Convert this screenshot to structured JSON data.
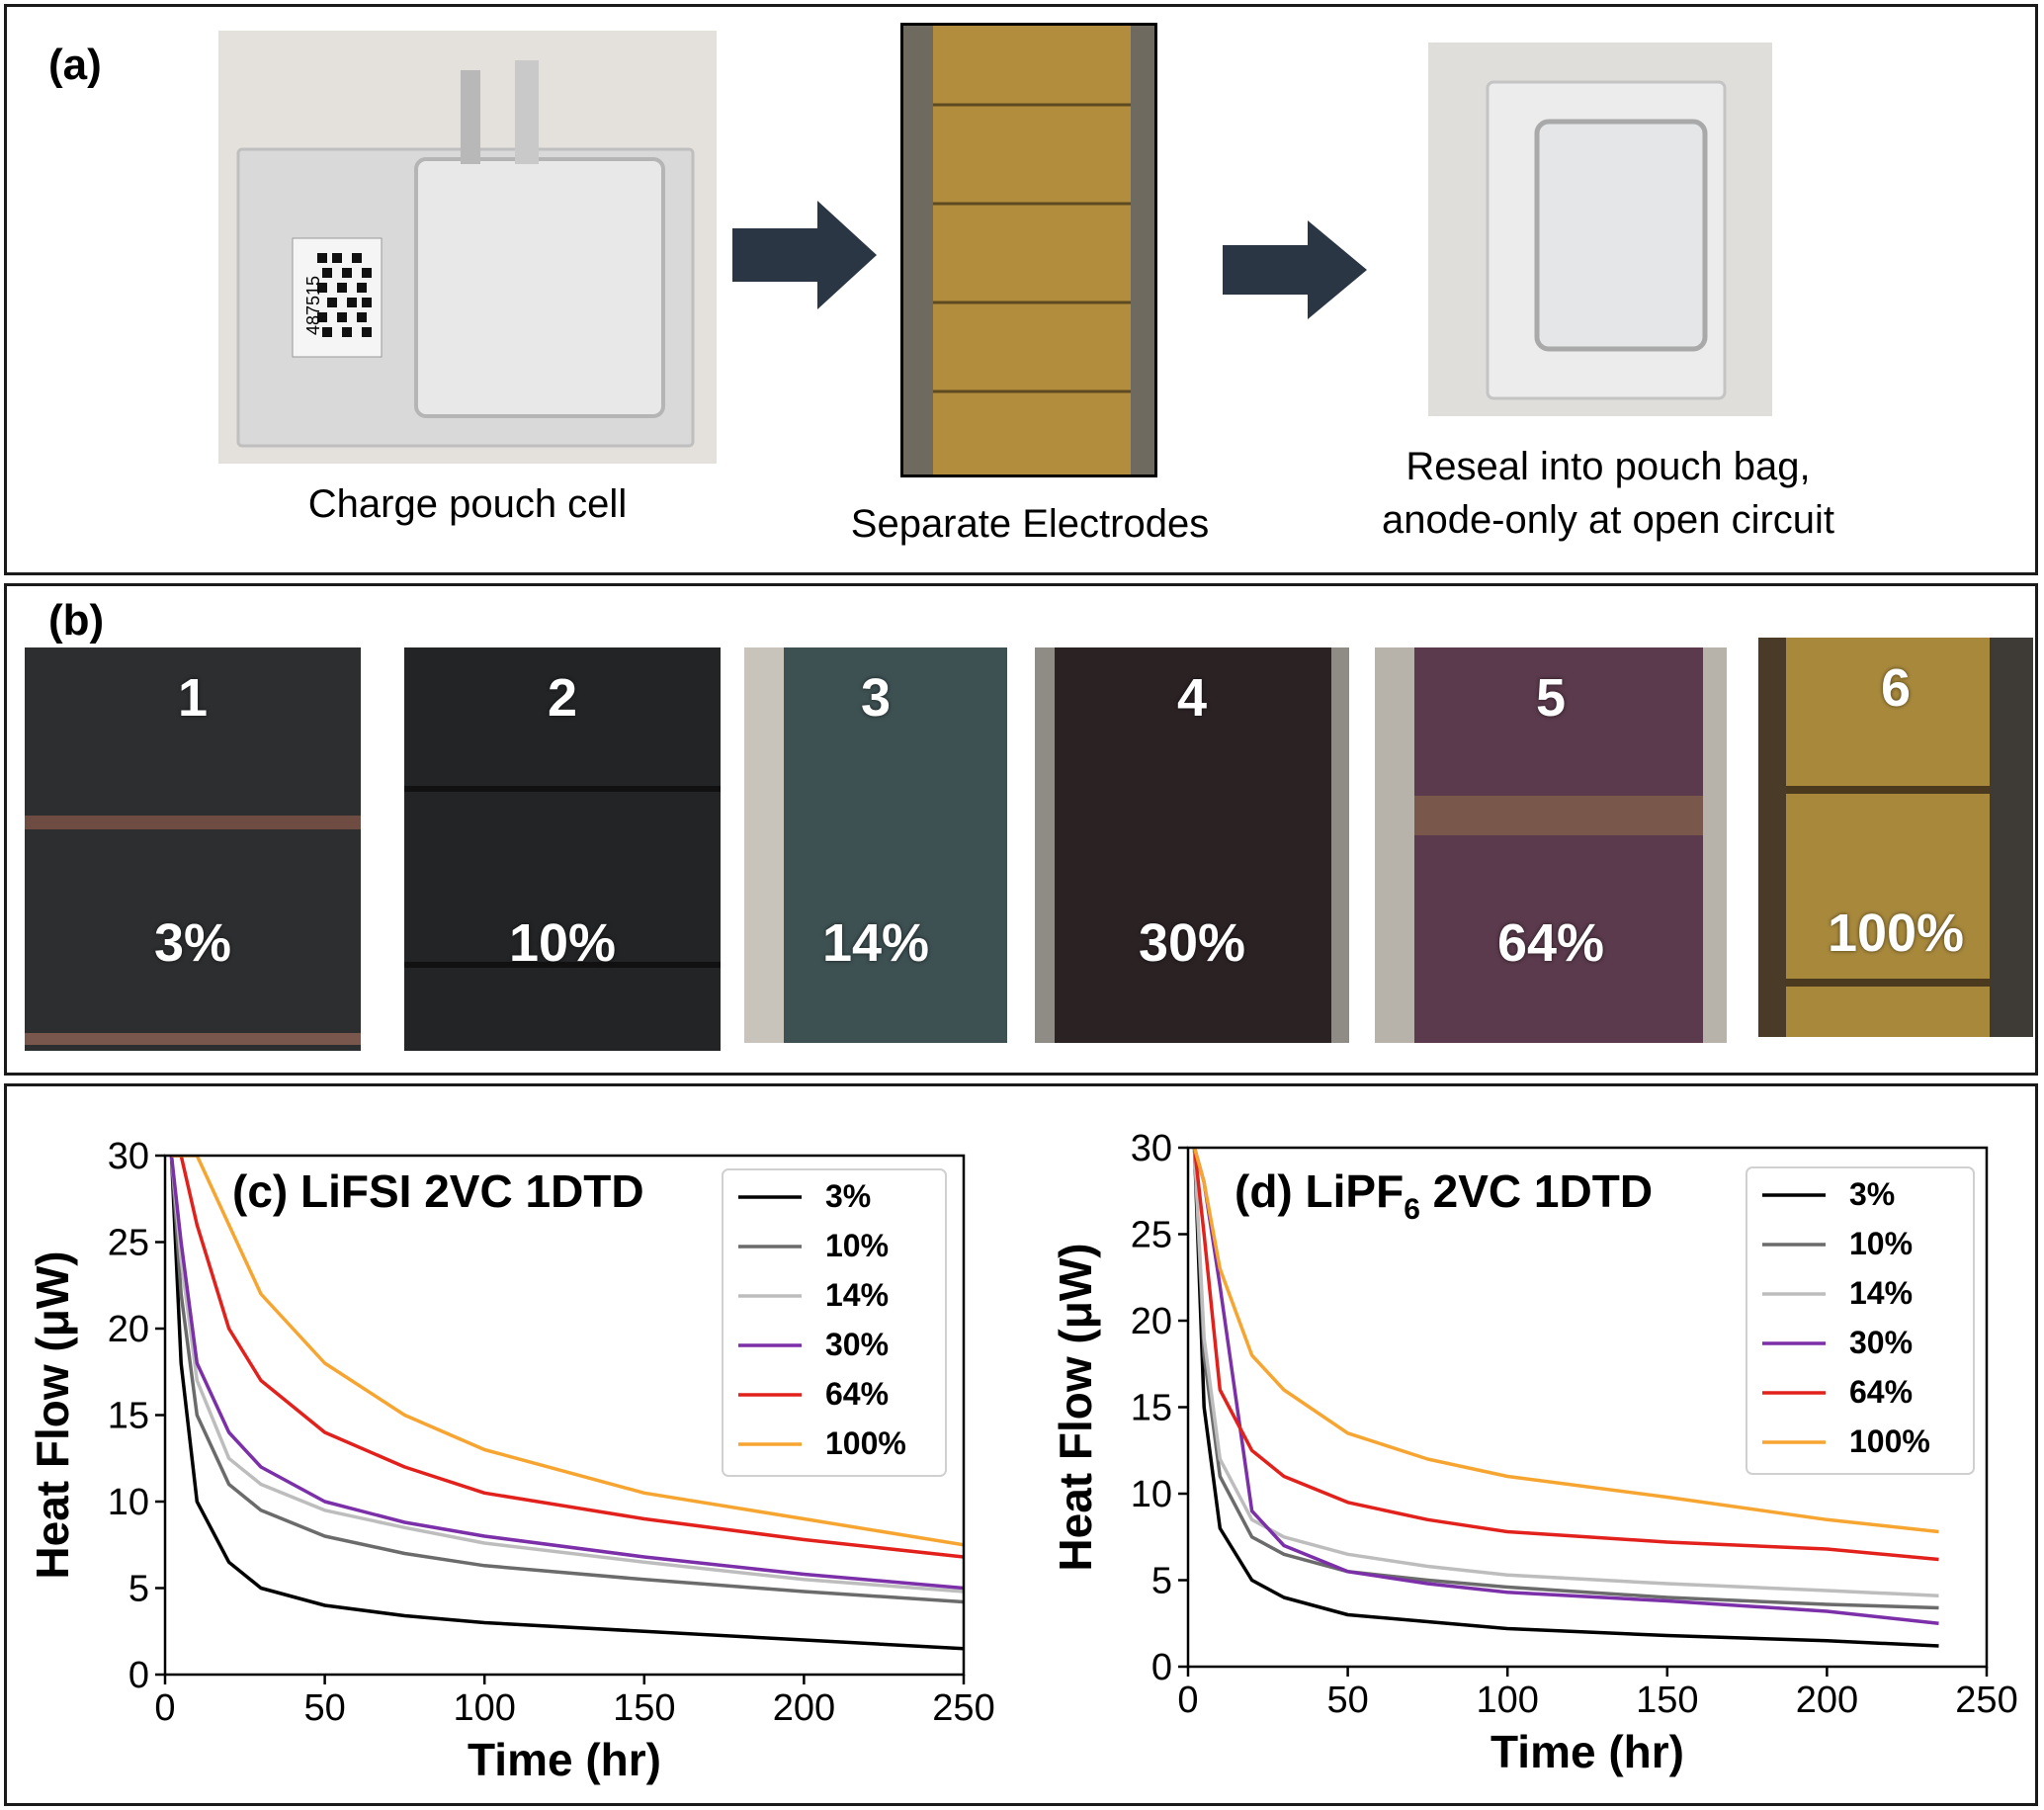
{
  "panel_a": {
    "label": "(a)",
    "barcode_number": "487515",
    "steps": [
      {
        "caption": "Charge pouch cell"
      },
      {
        "caption": "Separate Electrodes"
      },
      {
        "caption_line1": "Reseal into pouch bag,",
        "caption_line2": "anode-only at open circuit"
      }
    ]
  },
  "panel_b": {
    "label": "(b)",
    "strips": [
      {
        "number": "1",
        "percent": "3%",
        "color": "#2c2e30"
      },
      {
        "number": "2",
        "percent": "10%",
        "color": "#222426"
      },
      {
        "number": "3",
        "percent": "14%",
        "color": "#3d5052"
      },
      {
        "number": "4",
        "percent": "30%",
        "color": "#2b2224"
      },
      {
        "number": "5",
        "percent": "64%",
        "color": "#5a3a4c"
      },
      {
        "number": "6",
        "percent": "100%",
        "color": "#a8893c"
      }
    ]
  },
  "chart_data": [
    {
      "type": "line",
      "title": "(c) LiFSI 2VC 1DTD",
      "xlabel": "Time (hr)",
      "ylabel": "Heat Flow (μW)",
      "xlim": [
        0,
        250
      ],
      "ylim": [
        0,
        30
      ],
      "xticks": [
        "0",
        "50",
        "100",
        "150",
        "200",
        "250"
      ],
      "yticks": [
        "0",
        "5",
        "10",
        "15",
        "20",
        "25",
        "30"
      ],
      "legend_position": "top-right",
      "series": [
        {
          "name": "3%",
          "color": "#000000",
          "x": [
            2,
            5,
            10,
            20,
            30,
            50,
            75,
            100,
            150,
            200,
            250
          ],
          "y": [
            30,
            18,
            10,
            6.5,
            5,
            4,
            3.4,
            3,
            2.5,
            2,
            1.5
          ]
        },
        {
          "name": "10%",
          "color": "#6b6b6b",
          "x": [
            2,
            5,
            10,
            20,
            30,
            50,
            75,
            100,
            150,
            200,
            250
          ],
          "y": [
            30,
            22,
            15,
            11,
            9.5,
            8,
            7,
            6.3,
            5.5,
            4.8,
            4.2
          ]
        },
        {
          "name": "14%",
          "color": "#bdbdbd",
          "x": [
            2,
            5,
            10,
            20,
            30,
            50,
            75,
            100,
            150,
            200,
            250
          ],
          "y": [
            30,
            24,
            17,
            12.5,
            11,
            9.5,
            8.5,
            7.6,
            6.5,
            5.5,
            4.8
          ]
        },
        {
          "name": "30%",
          "color": "#7b2fa8",
          "x": [
            2,
            5,
            10,
            20,
            30,
            50,
            75,
            100,
            150,
            200,
            250
          ],
          "y": [
            30,
            25,
            18,
            14,
            12,
            10,
            8.8,
            8,
            6.8,
            5.8,
            5
          ]
        },
        {
          "name": "64%",
          "color": "#e3211c",
          "x": [
            2,
            5,
            10,
            20,
            30,
            50,
            75,
            100,
            150,
            200,
            250
          ],
          "y": [
            30,
            30,
            26,
            20,
            17,
            14,
            12,
            10.5,
            9,
            7.8,
            6.8
          ]
        },
        {
          "name": "100%",
          "color": "#f7a531",
          "x": [
            2,
            5,
            10,
            20,
            30,
            50,
            75,
            100,
            150,
            200,
            250
          ],
          "y": [
            30,
            30,
            30,
            26,
            22,
            18,
            15,
            13,
            10.5,
            9,
            7.5
          ]
        }
      ]
    },
    {
      "type": "line",
      "title_prefix": "(d) LiPF",
      "title_subscript": "6",
      "title_suffix": " 2VC 1DTD",
      "xlabel": "Time (hr)",
      "ylabel": "Heat Flow (μW)",
      "xlim": [
        0,
        250
      ],
      "ylim": [
        0,
        30
      ],
      "xticks": [
        "0",
        "50",
        "100",
        "150",
        "200",
        "250"
      ],
      "yticks": [
        "0",
        "5",
        "10",
        "15",
        "20",
        "25",
        "30"
      ],
      "legend_position": "top-right",
      "series": [
        {
          "name": "3%",
          "color": "#000000",
          "x": [
            2,
            5,
            10,
            20,
            30,
            50,
            75,
            100,
            150,
            200,
            235
          ],
          "y": [
            30,
            15,
            8,
            5,
            4,
            3,
            2.6,
            2.2,
            1.8,
            1.5,
            1.2
          ]
        },
        {
          "name": "10%",
          "color": "#6b6b6b",
          "x": [
            2,
            5,
            10,
            20,
            30,
            50,
            75,
            100,
            150,
            200,
            235
          ],
          "y": [
            30,
            18,
            11,
            7.5,
            6.5,
            5.5,
            5,
            4.6,
            4,
            3.6,
            3.4
          ]
        },
        {
          "name": "14%",
          "color": "#bdbdbd",
          "x": [
            2,
            5,
            10,
            20,
            30,
            50,
            75,
            100,
            150,
            200,
            235
          ],
          "y": [
            30,
            19,
            12,
            8.5,
            7.5,
            6.5,
            5.8,
            5.3,
            4.8,
            4.4,
            4.1
          ]
        },
        {
          "name": "30%",
          "color": "#7b2fa8",
          "x": [
            2,
            5,
            10,
            20,
            30,
            50,
            75,
            100,
            150,
            200,
            235
          ],
          "y": [
            30,
            28,
            22,
            9,
            7,
            5.5,
            4.8,
            4.3,
            3.8,
            3.2,
            2.5
          ]
        },
        {
          "name": "64%",
          "color": "#e3211c",
          "x": [
            2,
            5,
            10,
            20,
            30,
            50,
            75,
            100,
            150,
            200,
            235
          ],
          "y": [
            30,
            25,
            16,
            12.5,
            11,
            9.5,
            8.5,
            7.8,
            7.2,
            6.8,
            6.2
          ]
        },
        {
          "name": "100%",
          "color": "#f7a531",
          "x": [
            2,
            5,
            10,
            20,
            30,
            50,
            75,
            100,
            150,
            200,
            235
          ],
          "y": [
            30,
            28,
            23,
            18,
            16,
            13.5,
            12,
            11,
            9.8,
            8.5,
            7.8
          ]
        }
      ]
    }
  ]
}
